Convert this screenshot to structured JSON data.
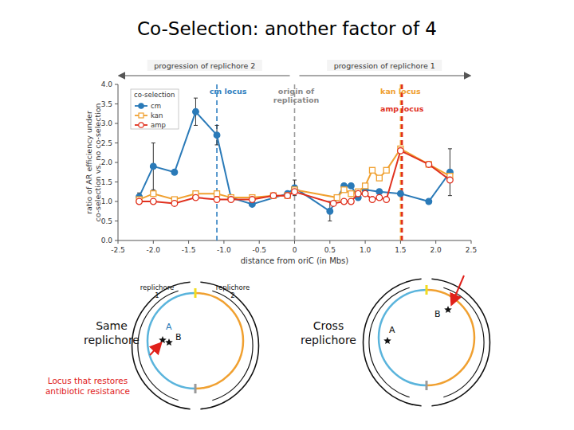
{
  "slide": {
    "title": "Co-Selection: another factor of 4",
    "diagrams": [
      {
        "caption": "Same replichore",
        "replichores": [
          "replichore 1",
          "replichore 2"
        ],
        "loci": [
          "A",
          "B"
        ],
        "note": "Locus that restores antibiotic resistance"
      },
      {
        "caption": "Cross replichore",
        "loci": [
          "A",
          "B"
        ]
      }
    ]
  },
  "chart_data": {
    "type": "line",
    "x_label": "distance from oriC (in Mbs)",
    "y_label": "ratio of AR efficiency under co-selection vs. no co-selection",
    "annotations": [
      "progression of replichore 2",
      "progression of replichore 1"
    ],
    "vlines": [
      {
        "label": "cm locus",
        "x": -1.1,
        "color": "#2f7fc0"
      },
      {
        "label": "origin of replication",
        "x": 0,
        "color": "#9a9a9a"
      },
      {
        "label": "kan locus",
        "x": 1.5,
        "color": "#f0a030"
      },
      {
        "label": "amp locus",
        "x": 1.52,
        "color": "#e0301e"
      }
    ],
    "legend_title": "co-selection",
    "legend": "top-left",
    "grid": false,
    "xlim": [
      -2.5,
      2.5
    ],
    "xticks": [
      -2.5,
      {
        "value": -2,
        "label": "-2.0"
      },
      -1.5,
      {
        "value": -1,
        "label": "-1.0"
      },
      -0.5,
      0,
      0.5,
      {
        "value": 1,
        "label": "1.0"
      },
      1.5,
      {
        "value": 2,
        "label": "2.0"
      },
      2.5
    ],
    "ylim": [
      0,
      4
    ],
    "yticks": [
      {
        "value": 0,
        "label": "0.0"
      },
      0.5,
      {
        "value": 1,
        "label": "1.0"
      },
      1.5,
      {
        "value": 2,
        "label": "2.0"
      },
      2.5,
      {
        "value": 3,
        "label": "3.0"
      },
      3.5,
      {
        "value": 4,
        "label": "4.0"
      }
    ],
    "series": [
      {
        "name": "cm",
        "color": "#2a7ab8",
        "marker": "circle-filled",
        "x": [
          -2.2,
          -2.0,
          -1.7,
          -1.4,
          -1.1,
          -0.9,
          -0.6,
          -0.1,
          0.0,
          0.5,
          0.7,
          0.8,
          0.9,
          1.0,
          1.2,
          1.5,
          1.9,
          2.2
        ],
        "values": [
          1.12,
          1.9,
          1.75,
          3.3,
          2.7,
          1.1,
          0.93,
          1.2,
          1.35,
          0.75,
          1.4,
          1.4,
          1.1,
          1.3,
          1.25,
          1.2,
          1.0,
          1.75
        ],
        "errors": [
          0.1,
          0.6,
          null,
          0.35,
          0.25,
          null,
          null,
          null,
          0.2,
          0.25,
          null,
          null,
          null,
          null,
          null,
          null,
          null,
          0.6
        ]
      },
      {
        "name": "kan",
        "color": "#f0a030",
        "marker": "square-open",
        "x": [
          -2.2,
          -2.0,
          -1.7,
          -1.4,
          -1.1,
          -0.9,
          -0.6,
          -0.3,
          -0.1,
          0.0,
          0.6,
          0.7,
          0.8,
          0.9,
          1.0,
          1.1,
          1.2,
          1.3,
          1.5,
          1.9,
          2.2
        ],
        "values": [
          1.05,
          1.2,
          1.05,
          1.2,
          1.2,
          1.1,
          1.1,
          1.15,
          1.15,
          1.3,
          1.1,
          1.3,
          1.2,
          1.25,
          1.4,
          1.8,
          1.6,
          1.8,
          2.35,
          1.95,
          1.65
        ]
      },
      {
        "name": "amp",
        "color": "#e0301e",
        "marker": "circle-open",
        "x": [
          -2.2,
          -2.0,
          -1.7,
          -1.4,
          -1.1,
          -0.9,
          -0.6,
          -0.3,
          -0.1,
          0.0,
          0.55,
          0.7,
          0.8,
          0.9,
          1.0,
          1.1,
          1.2,
          1.3,
          1.5,
          1.9,
          2.2
        ],
        "values": [
          1.0,
          1.0,
          0.95,
          1.1,
          1.05,
          1.05,
          1.05,
          1.15,
          1.15,
          1.25,
          0.95,
          1.0,
          1.0,
          1.2,
          1.2,
          1.05,
          1.1,
          1.05,
          2.3,
          1.95,
          1.55
        ]
      }
    ]
  }
}
